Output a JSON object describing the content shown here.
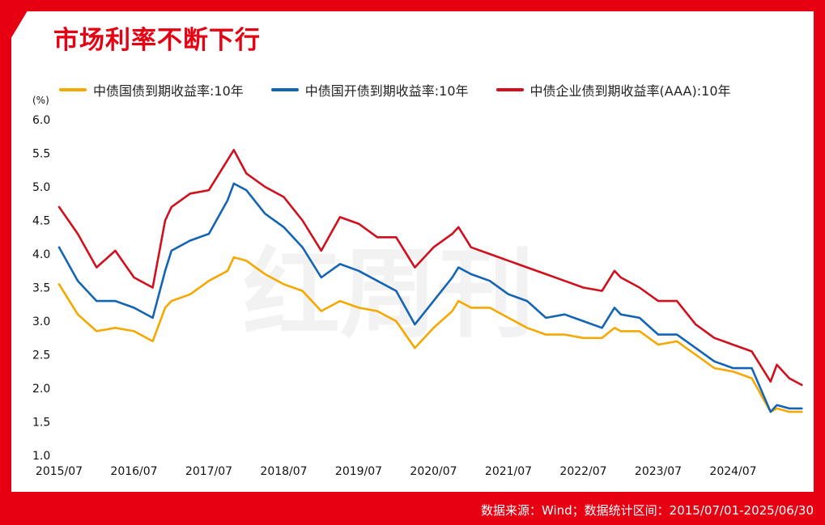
{
  "header": {
    "title": "市场利率不断下行"
  },
  "legend": [
    {
      "label": "中债国债到期收益率:10年",
      "color": "#f5a800"
    },
    {
      "label": "中债国开债到期收益率:10年",
      "color": "#1464b4"
    },
    {
      "label": "中债企业债到期收益率(AAA):10年",
      "color": "#d0101c"
    }
  ],
  "footer": {
    "source": "数据来源：Wind；数据统计区间：2015/07/01-2025/06/30"
  },
  "watermark": "红周刊",
  "chart_data": {
    "type": "line",
    "title": "市场利率不断下行",
    "y_unit": "(%)",
    "ylim": [
      1.0,
      6.0
    ],
    "yticks": [
      "6.0",
      "5.5",
      "5.0",
      "4.5",
      "4.0",
      "3.5",
      "3.0",
      "2.5",
      "2.0",
      "1.5",
      "1.0"
    ],
    "xticks": [
      "2015/07",
      "2016/07",
      "2017/07",
      "2018/07",
      "2019/07",
      "2020/07",
      "2021/07",
      "2022/07",
      "2023/07",
      "2024/07"
    ],
    "x": [
      "2015/07",
      "2015/10",
      "2016/01",
      "2016/04",
      "2016/07",
      "2016/10",
      "2016/12",
      "2017/01",
      "2017/04",
      "2017/07",
      "2017/10",
      "2017/11",
      "2018/01",
      "2018/04",
      "2018/07",
      "2018/10",
      "2019/01",
      "2019/04",
      "2019/07",
      "2019/10",
      "2020/01",
      "2020/04",
      "2020/07",
      "2020/10",
      "2020/11",
      "2021/01",
      "2021/04",
      "2021/07",
      "2021/10",
      "2022/01",
      "2022/04",
      "2022/07",
      "2022/10",
      "2022/12",
      "2023/01",
      "2023/04",
      "2023/07",
      "2023/10",
      "2024/01",
      "2024/04",
      "2024/07",
      "2024/10",
      "2025/01",
      "2025/02",
      "2025/04",
      "2025/06"
    ],
    "series": [
      {
        "name": "中债国债到期收益率:10年",
        "color": "#f5a800",
        "values": [
          3.55,
          3.1,
          2.85,
          2.9,
          2.85,
          2.7,
          3.2,
          3.3,
          3.4,
          3.6,
          3.75,
          3.95,
          3.9,
          3.7,
          3.55,
          3.45,
          3.15,
          3.3,
          3.2,
          3.15,
          3.0,
          2.6,
          2.9,
          3.15,
          3.3,
          3.2,
          3.2,
          3.05,
          2.9,
          2.8,
          2.8,
          2.75,
          2.75,
          2.9,
          2.85,
          2.85,
          2.65,
          2.7,
          2.5,
          2.3,
          2.25,
          2.15,
          1.65,
          1.7,
          1.65,
          1.65
        ]
      },
      {
        "name": "中债国开债到期收益率:10年",
        "color": "#1464b4",
        "values": [
          4.1,
          3.6,
          3.3,
          3.3,
          3.2,
          3.05,
          3.75,
          4.05,
          4.2,
          4.3,
          4.8,
          5.05,
          4.95,
          4.6,
          4.4,
          4.1,
          3.65,
          3.85,
          3.75,
          3.6,
          3.45,
          2.95,
          3.3,
          3.65,
          3.8,
          3.7,
          3.6,
          3.4,
          3.3,
          3.05,
          3.1,
          3.0,
          2.9,
          3.2,
          3.1,
          3.05,
          2.8,
          2.8,
          2.6,
          2.4,
          2.3,
          2.3,
          1.65,
          1.75,
          1.7,
          1.7
        ]
      },
      {
        "name": "中债企业债到期收益率(AAA):10年",
        "color": "#d0101c",
        "values": [
          4.7,
          4.3,
          3.8,
          4.05,
          3.65,
          3.5,
          4.5,
          4.7,
          4.9,
          4.95,
          5.4,
          5.55,
          5.2,
          5.0,
          4.85,
          4.5,
          4.05,
          4.55,
          4.45,
          4.25,
          4.25,
          3.8,
          4.1,
          4.3,
          4.4,
          4.1,
          4.0,
          3.9,
          3.8,
          3.7,
          3.6,
          3.5,
          3.45,
          3.75,
          3.65,
          3.5,
          3.3,
          3.3,
          2.95,
          2.75,
          2.65,
          2.55,
          2.1,
          2.35,
          2.15,
          2.05
        ]
      }
    ]
  }
}
